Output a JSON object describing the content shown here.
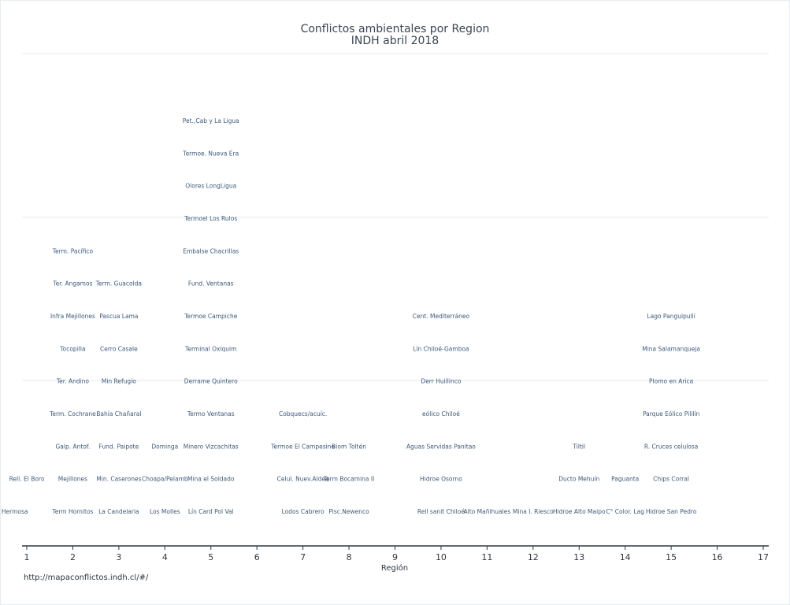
{
  "chart_data": {
    "type": "scatter",
    "title": "Conflictos ambientales por Region",
    "subtitle": "INDH abril 2018",
    "xlabel": "Región",
    "ylabel": "",
    "xlim": [
      1,
      17
    ],
    "ylim": [
      0,
      14
    ],
    "x_ticks": [
      "1",
      "2",
      "3",
      "4",
      "5",
      "6",
      "7",
      "8",
      "9",
      "10",
      "11",
      "12",
      "13",
      "14",
      "15",
      "16",
      "17"
    ],
    "grid": "horizontal",
    "point_labels": [
      {
        "x": 1,
        "y": 1,
        "label": "Pampa Hermosa"
      },
      {
        "x": 1,
        "y": 2,
        "label": "Rell. El Boro"
      },
      {
        "x": 2,
        "y": 1,
        "label": "Term  Hornitos"
      },
      {
        "x": 2,
        "y": 2,
        "label": "Mejillones"
      },
      {
        "x": 2,
        "y": 3,
        "label": "Galp. Antof."
      },
      {
        "x": 2,
        "y": 4,
        "label": "Term. Cochrane"
      },
      {
        "x": 2,
        "y": 5,
        "label": "Ter. Andino"
      },
      {
        "x": 2,
        "y": 6,
        "label": "Tocopilla"
      },
      {
        "x": 2,
        "y": 7,
        "label": "Infra  Mejillones"
      },
      {
        "x": 2,
        "y": 8,
        "label": "Ter. Angamos"
      },
      {
        "x": 2,
        "y": 9,
        "label": "Term. Pacífico"
      },
      {
        "x": 3,
        "y": 1,
        "label": "La Candelaria"
      },
      {
        "x": 3,
        "y": 2,
        "label": "Min. Caserones"
      },
      {
        "x": 3,
        "y": 3,
        "label": "Fund. Paipote"
      },
      {
        "x": 3,
        "y": 4,
        "label": "Bahía Chañaral"
      },
      {
        "x": 3,
        "y": 5,
        "label": "Min Refugio"
      },
      {
        "x": 3,
        "y": 6,
        "label": "Cerro Casale"
      },
      {
        "x": 3,
        "y": 7,
        "label": "Pascua Lama"
      },
      {
        "x": 3,
        "y": 8,
        "label": "Term. Guacolda"
      },
      {
        "x": 4,
        "y": 1,
        "label": "Los Molles"
      },
      {
        "x": 4,
        "y": 2,
        "label": "Choapa/Pelamb"
      },
      {
        "x": 4,
        "y": 3,
        "label": "Dominga"
      },
      {
        "x": 5,
        "y": 1,
        "label": "Lín  Card Pol Val"
      },
      {
        "x": 5,
        "y": 2,
        "label": "Mina el Soldado"
      },
      {
        "x": 5,
        "y": 3,
        "label": "Minero Vizcachitas"
      },
      {
        "x": 5,
        "y": 4,
        "label": "Termo Ventanas"
      },
      {
        "x": 5,
        "y": 5,
        "label": "Derrame  Quintero"
      },
      {
        "x": 5,
        "y": 6,
        "label": "Terminal Oxiquim"
      },
      {
        "x": 5,
        "y": 7,
        "label": "Termoe Campiche"
      },
      {
        "x": 5,
        "y": 8,
        "label": "Fund. Ventanas"
      },
      {
        "x": 5,
        "y": 9,
        "label": "Embalse Chacrillas"
      },
      {
        "x": 5,
        "y": 10,
        "label": "Termoel Los Rulos"
      },
      {
        "x": 5,
        "y": 11,
        "label": "Olores LongLigua"
      },
      {
        "x": 5,
        "y": 12,
        "label": "Termoe. Nueva Era"
      },
      {
        "x": 5,
        "y": 13,
        "label": "Pet.,Cab y La Ligua"
      },
      {
        "x": 7,
        "y": 1,
        "label": "Lodos Cabrero"
      },
      {
        "x": 7,
        "y": 2,
        "label": "Celul. Nuev.Aldea"
      },
      {
        "x": 7,
        "y": 3,
        "label": "Termoe El Campesino"
      },
      {
        "x": 7,
        "y": 4,
        "label": "Cobquecs/acuíc."
      },
      {
        "x": 8,
        "y": 1,
        "label": "Pisc.Newenco"
      },
      {
        "x": 8,
        "y": 2,
        "label": "Term Bocamina II"
      },
      {
        "x": 8,
        "y": 3,
        "label": "Biom Toltén"
      },
      {
        "x": 10,
        "y": 1,
        "label": "Rell sanit Chiloé"
      },
      {
        "x": 10,
        "y": 2,
        "label": "Hidroe Osorno"
      },
      {
        "x": 10,
        "y": 3,
        "label": "Aguas Servidas Panitao"
      },
      {
        "x": 10,
        "y": 4,
        "label": "eólico Chiloé"
      },
      {
        "x": 10,
        "y": 5,
        "label": "Derr  Huillinco"
      },
      {
        "x": 10,
        "y": 6,
        "label": "Lín  Chiloé-Gamboa"
      },
      {
        "x": 10,
        "y": 7,
        "label": "Cent. Mediterráneo"
      },
      {
        "x": 11,
        "y": 1,
        "label": "Alto Mañihuales"
      },
      {
        "x": 12,
        "y": 1,
        "label": "Mina I. Riesco"
      },
      {
        "x": 13,
        "y": 1,
        "label": "Hidroe Alto Maipo"
      },
      {
        "x": 13,
        "y": 2,
        "label": "Ducto Mehuín"
      },
      {
        "x": 13,
        "y": 3,
        "label": "Tiltil"
      },
      {
        "x": 14,
        "y": 1,
        "label": "C° Color. Lag"
      },
      {
        "x": 14,
        "y": 2,
        "label": "Paguanta"
      },
      {
        "x": 15,
        "y": 1,
        "label": "Hidroe San Pedro"
      },
      {
        "x": 15,
        "y": 2,
        "label": "Chips  Corral"
      },
      {
        "x": 15,
        "y": 3,
        "label": "R. Cruces  celulosa"
      },
      {
        "x": 15,
        "y": 4,
        "label": "Parque Eólico Pililín"
      },
      {
        "x": 15,
        "y": 5,
        "label": "Plomo en Arica"
      },
      {
        "x": 15,
        "y": 6,
        "label": "Mina Salamanqueja"
      },
      {
        "x": 15,
        "y": 7,
        "label": "Lago Panguipulli"
      }
    ],
    "x_offsets": {
      "Pampa Hermosa": -0.5,
      "Rell. El Boro": 0.0,
      "Term  Hornitos": 0.0,
      "Ter. Andino": 0.0,
      "Ter. Angamos": 0.0,
      "Term. Guacolda": 0.0,
      "Los Molles": 0.0,
      "Choapa/Pelamb": 0.0,
      "Dominga": 0.0,
      "Lín  Card Pol Val": 0.0,
      "Mina el Soldado": 0.0,
      "Celul. Nuev.Aldea": 0.0,
      "Term Bocamina II": 0.0,
      "Biom Toltén": 0.0,
      "Termoe El Campesino": 0.0
    }
  },
  "source_note": "http://mapaconflictos.indh.cl/#/"
}
